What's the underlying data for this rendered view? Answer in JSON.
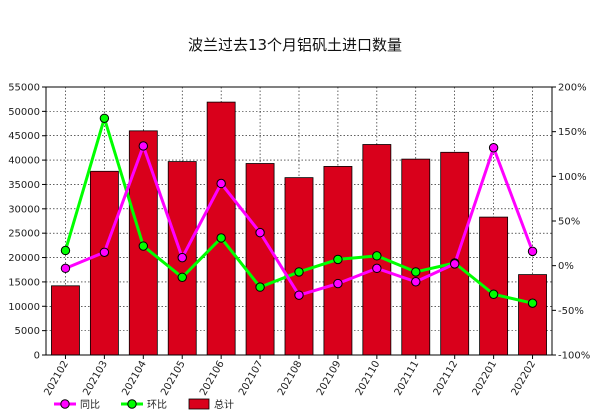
{
  "chart_data": {
    "type": "bar",
    "title": "波兰过去13个月铝矾土进口数量",
    "categories": [
      "202102",
      "202103",
      "202104",
      "202105",
      "202106",
      "202107",
      "202108",
      "202109",
      "202110",
      "202111",
      "202112",
      "202201",
      "202202"
    ],
    "series": [
      {
        "name": "总计",
        "type": "bar",
        "axis": "left",
        "color": "#d9001b",
        "values": [
          14200,
          37700,
          46000,
          39700,
          51900,
          39300,
          36400,
          38700,
          43200,
          40200,
          41600,
          28300,
          16500
        ]
      },
      {
        "name": "同比",
        "type": "line",
        "axis": "right",
        "color": "#ff00ff",
        "values": [
          -3,
          15,
          134,
          9,
          92,
          37,
          -33,
          -20,
          -3,
          -18,
          2,
          132,
          16
        ]
      },
      {
        "name": "环比",
        "type": "line",
        "axis": "right",
        "color": "#00ff00",
        "values": [
          17,
          165,
          22,
          -13,
          31,
          -24,
          -7,
          7,
          11,
          -7,
          3,
          -32,
          -42
        ]
      }
    ],
    "y_left": {
      "min": 0,
      "max": 55000,
      "step": 5000,
      "tick_labels": [
        "0",
        "5000",
        "10000",
        "15000",
        "20000",
        "25000",
        "30000",
        "35000",
        "40000",
        "45000",
        "50000",
        "55000"
      ]
    },
    "y_right": {
      "min": -100,
      "max": 200,
      "step": 50,
      "tick_labels": [
        "-100%",
        "-50%",
        "0%",
        "50%",
        "100%",
        "150%",
        "200%"
      ]
    },
    "grid": true,
    "legend_position": "bottom-left"
  }
}
